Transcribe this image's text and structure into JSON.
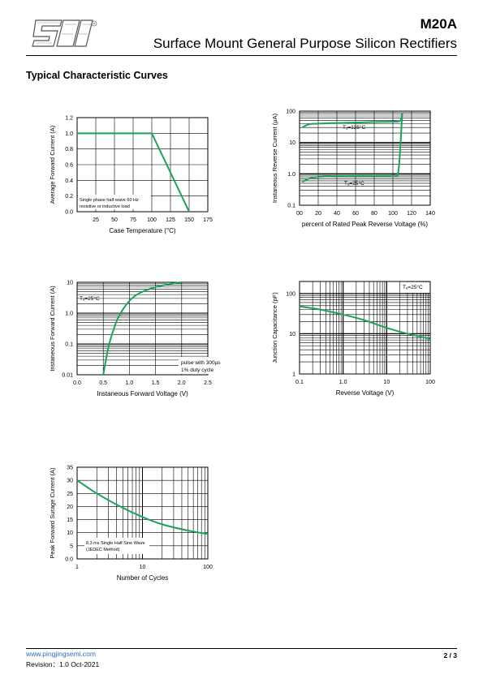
{
  "header": {
    "part_number": "M20A",
    "subtitle": "Surface Mount General Purpose Silicon Rectifiers"
  },
  "section_title": "Typical Characteristic Curves",
  "footer": {
    "website": "www.pingjingsemi.com",
    "revision": "Revision：1.0  Oct-2021",
    "page": "2 / 3"
  },
  "colors": {
    "curve": "#1aa35a",
    "grid": "#000000"
  },
  "chart_data": [
    {
      "type": "line",
      "xlabel": "Case Temperature (°C)",
      "ylabel": "Average Forward Current (A)",
      "xlim": [
        0,
        175
      ],
      "ylim": [
        0,
        1.2
      ],
      "xticks": [
        25,
        50,
        75,
        100,
        125,
        150,
        175
      ],
      "yticks": [
        0,
        0.2,
        0.4,
        0.6,
        0.8,
        1.0,
        1.2
      ],
      "ytick_labels": [
        "0.0",
        "0.2",
        "0.4",
        "0.6",
        "0.8",
        "1.0",
        "1.2"
      ],
      "annotations": [
        "Single phase half-wave 60 Hz",
        "resistive or inductive load"
      ],
      "series": [
        {
          "x": [
            0,
            100,
            150
          ],
          "y": [
            1.0,
            1.0,
            0
          ]
        }
      ]
    },
    {
      "type": "line",
      "xlabel": "percent of Rated  Peak Reverse Voltage (%)",
      "ylabel": "Instaneous Reverse Current (μA)",
      "xscale": "linear",
      "yscale": "log",
      "xlim": [
        0,
        140
      ],
      "ylim": [
        0.1,
        100
      ],
      "xticks": [
        0,
        20,
        40,
        60,
        80,
        100,
        120,
        140
      ],
      "xtick_labels": [
        "00",
        "20",
        "40",
        "60",
        "80",
        "100",
        "120",
        "140"
      ],
      "yticks": [
        0.1,
        1.0,
        10,
        100
      ],
      "ytick_labels": [
        "0.1",
        "1.0",
        "10",
        "100"
      ],
      "series": [
        {
          "name": "Tₐ=125°C",
          "x": [
            3,
            10,
            20,
            40,
            60,
            80,
            100,
            108,
            110
          ],
          "y": [
            30,
            38,
            40,
            42,
            43,
            45,
            46,
            50,
            90
          ]
        },
        {
          "name": "Tₐ=25°C",
          "x": [
            3,
            10,
            20,
            40,
            60,
            80,
            100,
            106,
            110
          ],
          "y": [
            0.55,
            0.7,
            0.8,
            0.85,
            0.87,
            0.88,
            0.9,
            1.3,
            90
          ]
        }
      ]
    },
    {
      "type": "line",
      "xlabel": "Instaneous Forward Voltage (V)",
      "ylabel": "Instaneous Forward Current (A)",
      "xscale": "linear",
      "yscale": "log",
      "xlim": [
        0,
        2.5
      ],
      "ylim": [
        0.01,
        10
      ],
      "xticks": [
        0,
        0.5,
        1.0,
        1.5,
        2.0,
        2.5
      ],
      "xtick_labels": [
        "0.0",
        "0.5",
        "1.0",
        "1.5",
        "2.0",
        "2.5"
      ],
      "yticks": [
        0.01,
        0.1,
        1.0,
        10
      ],
      "ytick_labels": [
        "0.01",
        "0.1",
        "1.0",
        "10"
      ],
      "annotations": [
        "Tₐ=25°C",
        "pulse with 300μs",
        "1% duty cycle"
      ],
      "series": [
        {
          "x": [
            0.5,
            0.6,
            0.7,
            0.8,
            1.0,
            1.2,
            1.5,
            1.8,
            2.0
          ],
          "y": [
            0.01,
            0.08,
            0.3,
            0.8,
            2.5,
            4.5,
            7.0,
            9.0,
            10
          ]
        }
      ]
    },
    {
      "type": "line",
      "xlabel": "Reverse  Voltage (V)",
      "ylabel": "Junction Capacitance (pF)",
      "xscale": "log",
      "yscale": "log",
      "xlim": [
        0.1,
        100
      ],
      "ylim": [
        1,
        200
      ],
      "xticks": [
        0.1,
        1.0,
        10,
        100
      ],
      "xtick_labels": [
        "0.1",
        "1.0",
        "10",
        "100"
      ],
      "yticks": [
        1,
        10,
        100
      ],
      "ytick_labels": [
        "1",
        "10",
        "100"
      ],
      "annotations": [
        "Tₐ=25°C"
      ],
      "series": [
        {
          "x": [
            0.1,
            0.3,
            1,
            3,
            10,
            30,
            100
          ],
          "y": [
            48,
            40,
            30,
            22,
            14,
            10,
            7.5
          ]
        }
      ]
    },
    {
      "type": "line",
      "xlabel": "Number of Cycles",
      "ylabel": "Peak Forward Surage Current (A)",
      "xscale": "log",
      "xlim": [
        1,
        100
      ],
      "ylim": [
        0,
        35
      ],
      "xticks": [
        1,
        10,
        100
      ],
      "xtick_labels": [
        "1",
        "10",
        "100"
      ],
      "yticks": [
        0,
        5,
        10,
        15,
        20,
        25,
        30,
        35
      ],
      "ytick_labels": [
        "0.0",
        "5",
        "10",
        "15",
        "20",
        "25",
        "30",
        "35"
      ],
      "annotations": [
        "8.3 ms Single Half Sine Wave",
        "(JEDEC Method)"
      ],
      "series": [
        {
          "x": [
            1,
            2,
            5,
            10,
            20,
            50,
            100
          ],
          "y": [
            30,
            25,
            19.5,
            16,
            13.2,
            10.8,
            9.5
          ]
        }
      ]
    }
  ]
}
